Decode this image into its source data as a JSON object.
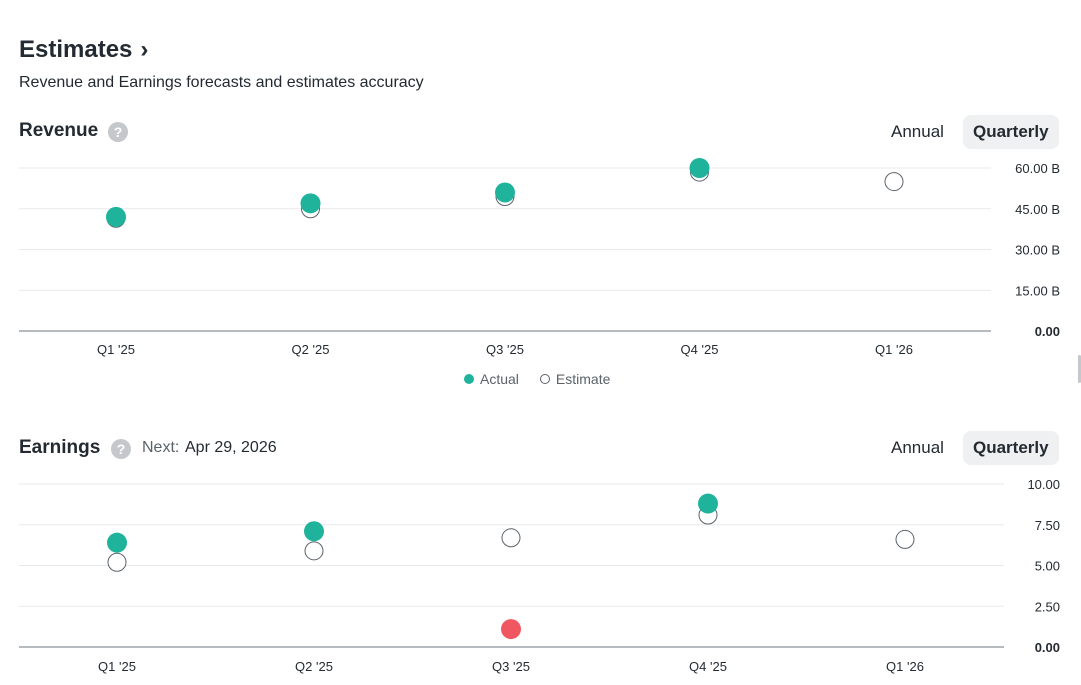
{
  "header": {
    "title": "Estimates",
    "chevron": "›",
    "subtitle": "Revenue and Earnings forecasts and estimates accuracy"
  },
  "colors": {
    "actual": "#20b39c",
    "miss": "#f05760",
    "estimate_stroke": "#5b636a",
    "grid": "#e8e9ea"
  },
  "revenue": {
    "title": "Revenue",
    "help": "?",
    "toggle": {
      "annual": "Annual",
      "quarterly": "Quarterly",
      "selected": "Quarterly"
    },
    "legend": {
      "actual": "Actual",
      "estimate": "Estimate"
    }
  },
  "earnings": {
    "title": "Earnings",
    "help": "?",
    "next_label": "Next:",
    "next_date": "Apr 29, 2026",
    "toggle": {
      "annual": "Annual",
      "quarterly": "Quarterly",
      "selected": "Quarterly"
    }
  },
  "chart_data": [
    {
      "type": "scatter",
      "title": "Revenue",
      "categories": [
        "Q1 '25",
        "Q2 '25",
        "Q3 '25",
        "Q4 '25",
        "Q1 '26"
      ],
      "ylim": [
        0,
        60
      ],
      "yticks": [
        0,
        15,
        30,
        45,
        60
      ],
      "ytick_labels": [
        "0.00",
        "15.00 B",
        "30.00 B",
        "45.00 B",
        "60.00 B"
      ],
      "grid": true,
      "series": [
        {
          "name": "Actual",
          "values": [
            42.0,
            47.0,
            51.0,
            60.0,
            null
          ]
        },
        {
          "name": "Estimate",
          "values": [
            41.5,
            45.0,
            49.5,
            58.5,
            55.0
          ]
        }
      ]
    },
    {
      "type": "scatter",
      "title": "Earnings",
      "categories": [
        "Q1 '25",
        "Q2 '25",
        "Q3 '25",
        "Q4 '25",
        "Q1 '26"
      ],
      "ylim": [
        0,
        10
      ],
      "yticks": [
        0,
        2.5,
        5,
        7.5,
        10
      ],
      "ytick_labels": [
        "0.00",
        "2.50",
        "5.00",
        "7.50",
        "10.00"
      ],
      "grid": true,
      "series": [
        {
          "name": "Actual",
          "values": [
            6.4,
            7.1,
            1.1,
            8.8,
            null
          ]
        },
        {
          "name": "Estimate",
          "values": [
            5.2,
            5.9,
            6.7,
            8.1,
            6.6
          ]
        }
      ]
    }
  ]
}
